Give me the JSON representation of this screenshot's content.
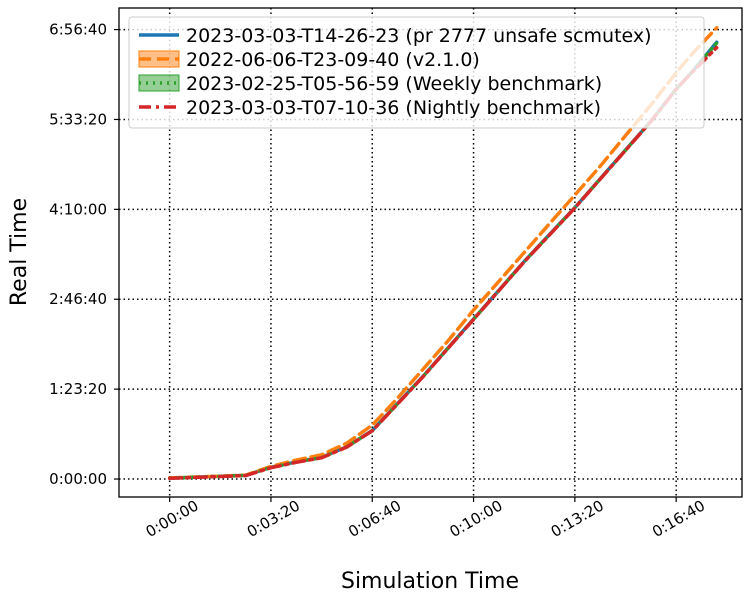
{
  "chart_data": {
    "type": "line",
    "xlabel": "Simulation Time",
    "ylabel": "Real Time",
    "xlim_seconds": [
      -100,
      1130
    ],
    "ylim_seconds": [
      -1000,
      26200
    ],
    "x_ticks": [
      {
        "value": 0,
        "label": "0:00:00"
      },
      {
        "value": 200,
        "label": "0:03:20"
      },
      {
        "value": 400,
        "label": "0:06:40"
      },
      {
        "value": 600,
        "label": "0:10:00"
      },
      {
        "value": 800,
        "label": "0:13:20"
      },
      {
        "value": 1000,
        "label": "0:16:40"
      }
    ],
    "y_ticks": [
      {
        "value": 0,
        "label": "0:00:00"
      },
      {
        "value": 5000,
        "label": "1:23:20"
      },
      {
        "value": 10000,
        "label": "2:46:40"
      },
      {
        "value": 15000,
        "label": "4:10:00"
      },
      {
        "value": 20000,
        "label": "5:33:20"
      },
      {
        "value": 25000,
        "label": "6:56:40"
      }
    ],
    "grid": true,
    "legend_position": "top-left",
    "series": [
      {
        "name": "2023-03-03-T14-26-23 (pr 2777 unsafe scmutex)",
        "color": "#1f77b4",
        "style": "solid",
        "x": [
          0,
          50,
          100,
          150,
          200,
          250,
          300,
          350,
          400,
          450,
          500,
          550,
          600,
          650,
          700,
          750,
          800,
          850,
          900,
          950,
          1000,
          1030,
          1080
        ],
        "y": [
          50,
          100,
          150,
          200,
          650,
          950,
          1200,
          1800,
          2700,
          4200,
          5700,
          7300,
          8900,
          10500,
          12100,
          13600,
          15100,
          16700,
          18300,
          19900,
          21700,
          22600,
          24300
        ]
      },
      {
        "name": "2022-06-06-T23-09-40 (v2.1.0)",
        "color": "#ff7f0e",
        "style": "dashed",
        "x": [
          0,
          50,
          100,
          150,
          200,
          250,
          300,
          350,
          400,
          450,
          500,
          550,
          600,
          650,
          700,
          750,
          800,
          850,
          900,
          950,
          1000,
          1030,
          1080
        ],
        "y": [
          60,
          110,
          160,
          220,
          700,
          1050,
          1350,
          2000,
          3000,
          4500,
          6100,
          7700,
          9400,
          11000,
          12600,
          14200,
          15800,
          17400,
          19100,
          20800,
          22600,
          23600,
          25100
        ]
      },
      {
        "name": "2023-02-25-T05-56-59 (Weekly benchmark)",
        "color": "#2ca02c",
        "style": "dotted",
        "x": [
          0,
          50,
          100,
          150,
          200,
          250,
          300,
          350,
          400,
          450,
          500,
          550,
          600,
          650,
          700,
          750,
          800,
          850,
          900,
          950,
          1000,
          1030,
          1080
        ],
        "y": [
          50,
          100,
          150,
          200,
          640,
          940,
          1190,
          1790,
          2690,
          4190,
          5690,
          7290,
          8890,
          10490,
          12090,
          13590,
          15090,
          16690,
          18290,
          19890,
          21690,
          22590,
          24250
        ]
      },
      {
        "name": "2023-03-03-T07-10-36 (Nightly benchmark)",
        "color": "#d62728",
        "style": "dashdot",
        "x": [
          0,
          50,
          100,
          150,
          200,
          250,
          300,
          350,
          400,
          450,
          500,
          550,
          600,
          650,
          700,
          750,
          800,
          850,
          900,
          950,
          1000,
          1030,
          1080
        ],
        "y": [
          40,
          90,
          140,
          190,
          630,
          930,
          1180,
          1780,
          2680,
          4180,
          5680,
          7280,
          8880,
          10480,
          12080,
          13580,
          15080,
          16680,
          18280,
          19880,
          21680,
          22580,
          24000
        ]
      }
    ]
  }
}
